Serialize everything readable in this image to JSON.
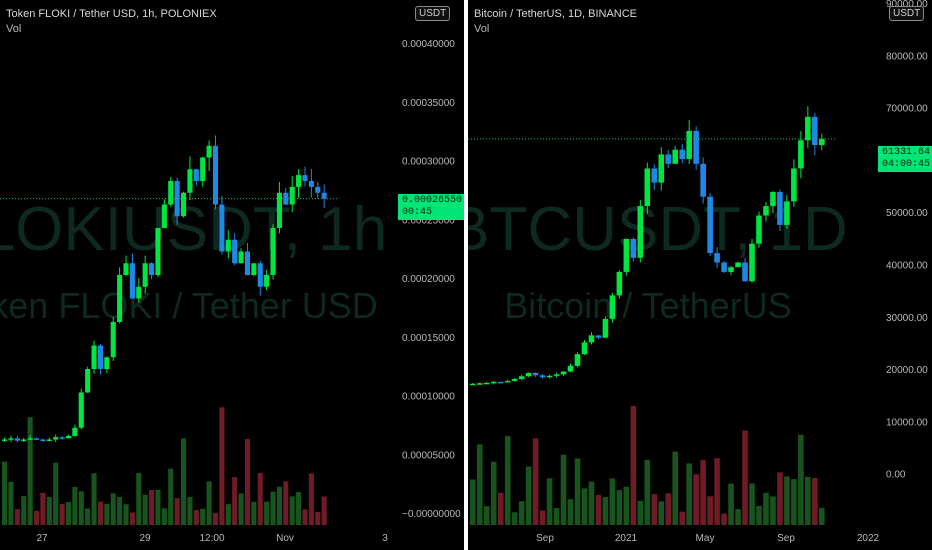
{
  "colors": {
    "background": "#000000",
    "up": "#00e640",
    "down": "#1e88e5",
    "volume_up": "#1b5e20",
    "volume_down": "#7b1f2a",
    "price_line": "#00c853",
    "label_bg": "#00e676"
  },
  "chart_data": [
    {
      "type": "candlestick",
      "title": "Token FLOKI / Tether USD, 1h, POLONIEX",
      "indicator": "Vol",
      "currency": "USDT",
      "watermark": [
        "FLOKIUSDT, 1h",
        "Token FLOKI / Tether USD"
      ],
      "x_ticks": [
        "27",
        "29",
        "12:00",
        "Nov",
        "3"
      ],
      "y_ticks": [
        "0.00040000",
        "0.00035000",
        "0.00030000",
        "0.00025000",
        "0.00020000",
        "0.00015000",
        "0.00010000",
        "0.00005000",
        "−0.00000000"
      ],
      "ylim": [
        0,
        0.0004
      ],
      "last_price": "0.00026550",
      "countdown": "00:45",
      "series_close": [
        6e-05,
        6.1e-05,
        5.9e-05,
        6e-05,
        6.1e-05,
        6e-05,
        5.9e-05,
        6e-05,
        6.2e-05,
        6.1e-05,
        6.3e-05,
        7e-05,
        0.0001,
        0.00012,
        0.00014,
        0.00012,
        0.00013,
        0.00016,
        0.0002,
        0.00021,
        0.00018,
        0.00019,
        0.00021,
        0.0002,
        0.00024,
        0.00026,
        0.00028,
        0.00025,
        0.00027,
        0.00029,
        0.00028,
        0.0003,
        0.00031,
        0.00026,
        0.00022,
        0.00023,
        0.00021,
        0.00022,
        0.0002,
        0.00021,
        0.00019,
        0.0002,
        0.00024,
        0.00027,
        0.00026,
        0.000275,
        0.000285,
        0.00028,
        0.000275,
        0.00027,
        0.000265
      ],
      "ylabel": "",
      "xlabel": ""
    },
    {
      "type": "candlestick",
      "title": "Bitcoin / TetherUS, 1D, BINANCE",
      "indicator": "Vol",
      "currency": "USDT",
      "watermark": [
        "BTCUSDT, 1D",
        "Bitcoin / TetherUS"
      ],
      "x_ticks": [
        "Sep",
        "2021",
        "May",
        "Sep",
        "2022"
      ],
      "y_ticks": [
        "90000.00",
        "80000.00",
        "70000.00",
        "60000.00",
        "50000.00",
        "40000.00",
        "30000.00",
        "20000.00",
        "10000.00",
        "0.00"
      ],
      "ylim": [
        -10000,
        90000
      ],
      "last_price": "61331.64",
      "countdown": "04:00:45",
      "series_close": [
        9200,
        9300,
        9400,
        9600,
        9500,
        9800,
        10200,
        10800,
        11500,
        11000,
        10600,
        10900,
        11200,
        11800,
        13000,
        15500,
        18000,
        19500,
        19000,
        23000,
        28000,
        33000,
        40000,
        36000,
        47000,
        55000,
        52000,
        58000,
        56000,
        59000,
        57000,
        63000,
        56000,
        49000,
        37000,
        35000,
        33000,
        34000,
        35000,
        31000,
        39000,
        45000,
        47000,
        50000,
        43000,
        48000,
        55000,
        61000,
        66000,
        60000,
        61300
      ],
      "ylabel": "",
      "xlabel": ""
    }
  ]
}
